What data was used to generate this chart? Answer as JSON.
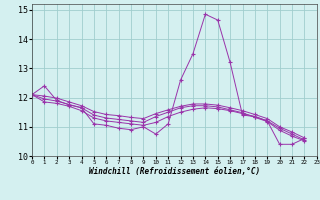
{
  "xlabel": "Windchill (Refroidissement éolien,°C)",
  "ylabel": "",
  "background_color": "#d4f0f0",
  "grid_color": "#a0cece",
  "line_color": "#9933aa",
  "ylim": [
    10,
    15.2
  ],
  "xlim": [
    0,
    23
  ],
  "yticks": [
    10,
    11,
    12,
    13,
    14,
    15
  ],
  "xticks": [
    0,
    1,
    2,
    3,
    4,
    5,
    6,
    7,
    8,
    9,
    10,
    11,
    12,
    13,
    14,
    15,
    16,
    17,
    18,
    19,
    20,
    21,
    22,
    23
  ],
  "series": [
    [
      12.1,
      12.4,
      11.9,
      11.75,
      11.65,
      11.1,
      11.05,
      10.95,
      10.9,
      11.0,
      10.75,
      11.1,
      12.6,
      13.5,
      14.85,
      14.65,
      13.2,
      11.4,
      11.35,
      11.2,
      10.4,
      10.4,
      10.6
    ],
    [
      12.1,
      11.85,
      11.8,
      11.7,
      11.55,
      11.3,
      11.2,
      11.15,
      11.1,
      11.05,
      11.15,
      11.35,
      11.5,
      11.6,
      11.65,
      11.62,
      11.55,
      11.45,
      11.35,
      11.2,
      10.95,
      10.75,
      10.55
    ],
    [
      12.1,
      11.95,
      11.88,
      11.76,
      11.65,
      11.4,
      11.3,
      11.25,
      11.2,
      11.15,
      11.35,
      11.5,
      11.65,
      11.72,
      11.72,
      11.68,
      11.58,
      11.48,
      11.32,
      11.18,
      10.88,
      10.68,
      10.52
    ],
    [
      12.1,
      12.05,
      11.98,
      11.85,
      11.72,
      11.52,
      11.42,
      11.38,
      11.32,
      11.28,
      11.45,
      11.58,
      11.7,
      11.78,
      11.78,
      11.74,
      11.65,
      11.55,
      11.42,
      11.28,
      11.0,
      10.82,
      10.62
    ]
  ]
}
